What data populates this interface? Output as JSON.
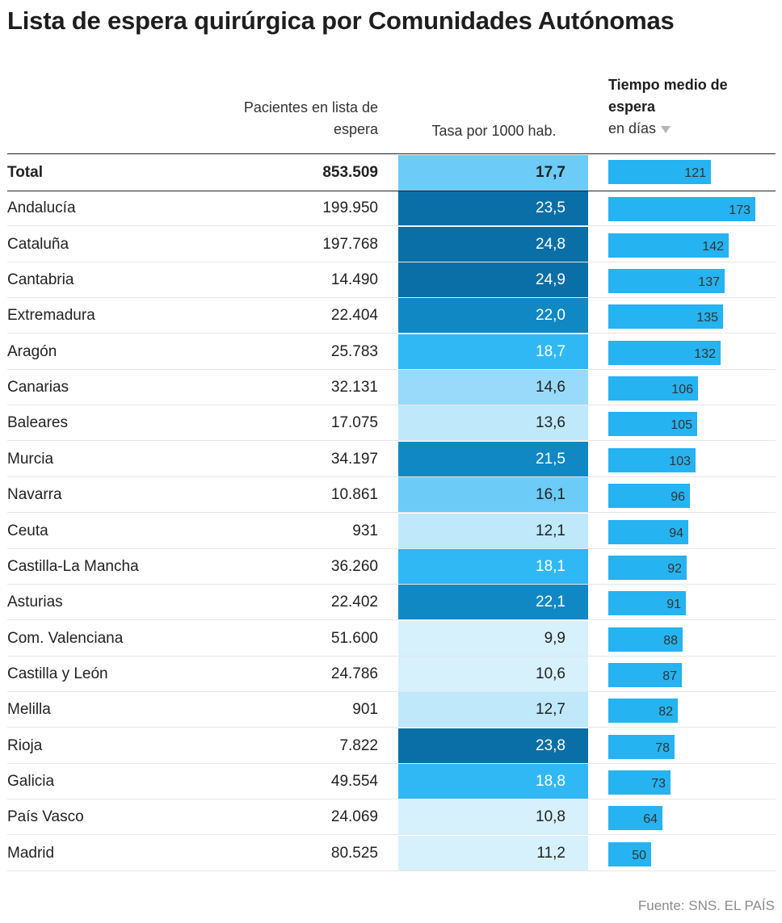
{
  "chart_data": {
    "type": "table",
    "title": "Lista de espera quirúrgica por Comunidades Autónomas",
    "columns": {
      "name": "",
      "pacientes": "Pacientes en lista de espera",
      "tasa": "Tasa por 1000 hab.",
      "tiempo_bold": "Tiempo medio de espera",
      "tiempo_sub": "en días"
    },
    "total": {
      "name": "Total",
      "pacientes": "853.509",
      "tasa": 17.7,
      "tasa_label": "17,7",
      "tiempo": 121
    },
    "rows": [
      {
        "name": "Andalucía",
        "pacientes": "199.950",
        "tasa": 23.5,
        "tasa_label": "23,5",
        "tiempo": 173
      },
      {
        "name": "Cataluña",
        "pacientes": "197.768",
        "tasa": 24.8,
        "tasa_label": "24,8",
        "tiempo": 142
      },
      {
        "name": "Cantabria",
        "pacientes": "14.490",
        "tasa": 24.9,
        "tasa_label": "24,9",
        "tiempo": 137
      },
      {
        "name": "Extremadura",
        "pacientes": "22.404",
        "tasa": 22.0,
        "tasa_label": "22,0",
        "tiempo": 135
      },
      {
        "name": "Aragón",
        "pacientes": "25.783",
        "tasa": 18.7,
        "tasa_label": "18,7",
        "tiempo": 132
      },
      {
        "name": "Canarias",
        "pacientes": "32.131",
        "tasa": 14.6,
        "tasa_label": "14,6",
        "tiempo": 106
      },
      {
        "name": "Baleares",
        "pacientes": "17.075",
        "tasa": 13.6,
        "tasa_label": "13,6",
        "tiempo": 105
      },
      {
        "name": "Murcia",
        "pacientes": "34.197",
        "tasa": 21.5,
        "tasa_label": "21,5",
        "tiempo": 103
      },
      {
        "name": "Navarra",
        "pacientes": "10.861",
        "tasa": 16.1,
        "tasa_label": "16,1",
        "tiempo": 96
      },
      {
        "name": "Ceuta",
        "pacientes": "931",
        "tasa": 12.1,
        "tasa_label": "12,1",
        "tiempo": 94
      },
      {
        "name": "Castilla-La Mancha",
        "pacientes": "36.260",
        "tasa": 18.1,
        "tasa_label": "18,1",
        "tiempo": 92
      },
      {
        "name": "Asturias",
        "pacientes": "22.402",
        "tasa": 22.1,
        "tasa_label": "22,1",
        "tiempo": 91
      },
      {
        "name": "Com. Valenciana",
        "pacientes": "51.600",
        "tasa": 9.9,
        "tasa_label": "9,9",
        "tiempo": 88
      },
      {
        "name": "Castilla y León",
        "pacientes": "24.786",
        "tasa": 10.6,
        "tasa_label": "10,6",
        "tiempo": 87
      },
      {
        "name": "Melilla",
        "pacientes": "901",
        "tasa": 12.7,
        "tasa_label": "12,7",
        "tiempo": 82
      },
      {
        "name": "Rioja",
        "pacientes": "7.822",
        "tasa": 23.8,
        "tasa_label": "23,8",
        "tiempo": 78
      },
      {
        "name": "Galicia",
        "pacientes": "49.554",
        "tasa": 18.8,
        "tasa_label": "18,8",
        "tiempo": 73
      },
      {
        "name": "País Vasco",
        "pacientes": "24.069",
        "tasa": 10.8,
        "tasa_label": "10,8",
        "tiempo": 64
      },
      {
        "name": "Madrid",
        "pacientes": "80.525",
        "tasa": 11.2,
        "tasa_label": "11,2",
        "tiempo": 50
      }
    ],
    "sort": "tiempo descending",
    "bar_color": "#26b3f1",
    "source": "Fuente: SNS. EL PAÍS"
  }
}
